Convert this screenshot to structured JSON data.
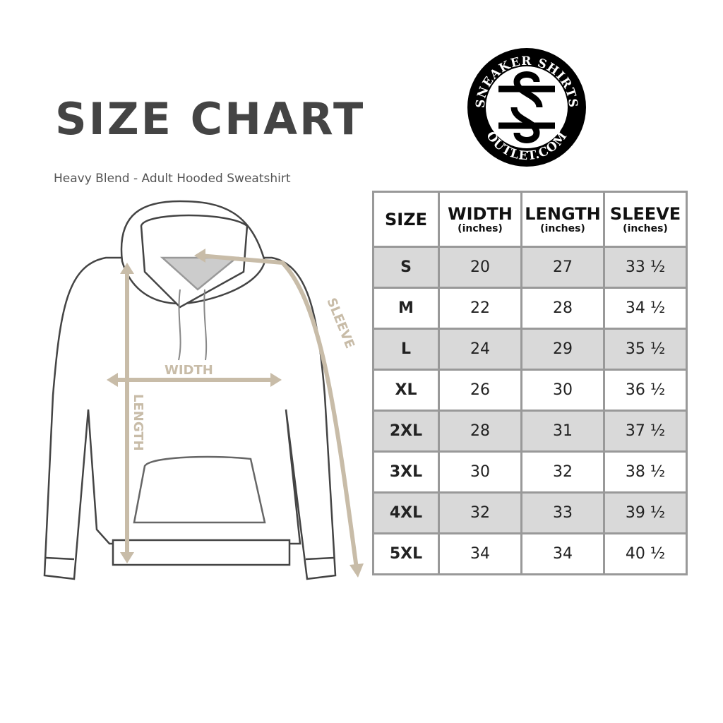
{
  "header": {
    "title": "SIZE CHART",
    "subtitle": "Heavy Blend - Adult Hooded Sweatshirt"
  },
  "logo": {
    "text_top": "SNEAKER SHIRTS",
    "text_bottom": "OUTLET.COM",
    "monogram": "SS"
  },
  "diagram": {
    "width_label": "WIDTH",
    "length_label": "LENGTH",
    "sleeve_label": "SLEEVE",
    "accent": "#c8bca8"
  },
  "table": {
    "columns": [
      {
        "label": "SIZE",
        "unit": ""
      },
      {
        "label": "WIDTH",
        "unit": "(inches)"
      },
      {
        "label": "LENGTH",
        "unit": "(inches)"
      },
      {
        "label": "SLEEVE",
        "unit": "(inches)"
      }
    ],
    "rows": [
      [
        "S",
        "20",
        "27",
        "33 ½"
      ],
      [
        "M",
        "22",
        "28",
        "34 ½"
      ],
      [
        "L",
        "24",
        "29",
        "35 ½"
      ],
      [
        "XL",
        "26",
        "30",
        "36 ½"
      ],
      [
        "2XL",
        "28",
        "31",
        "37 ½"
      ],
      [
        "3XL",
        "30",
        "32",
        "38 ½"
      ],
      [
        "4XL",
        "32",
        "33",
        "39 ½"
      ],
      [
        "5XL",
        "34",
        "34",
        "40 ½"
      ]
    ]
  }
}
